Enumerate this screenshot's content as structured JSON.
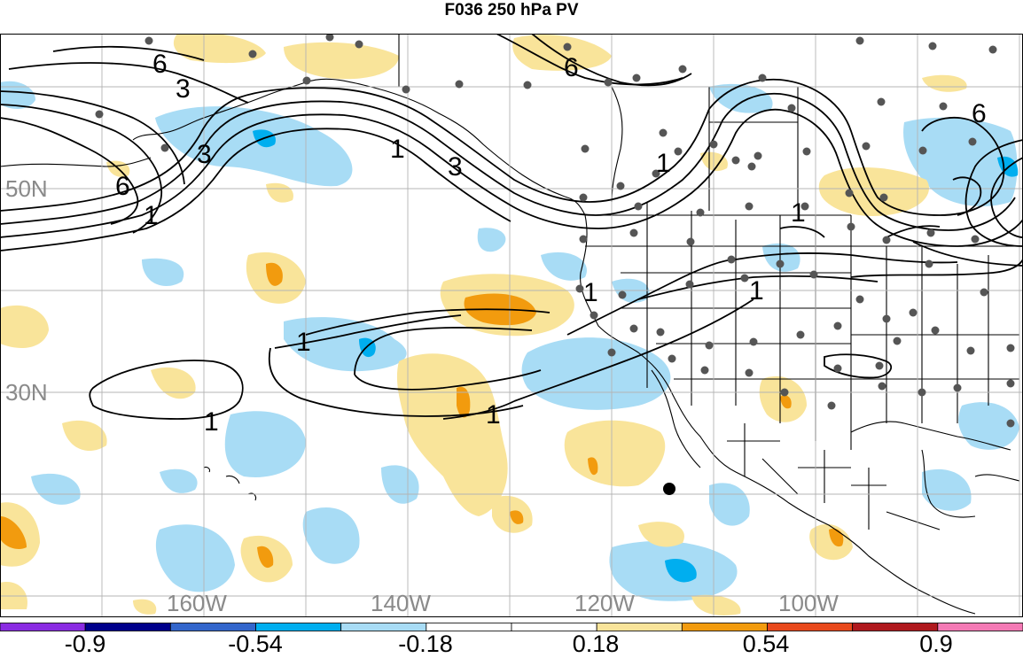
{
  "title": "F036 250 hPa PV",
  "map": {
    "latitude_labels": [
      "50N",
      "30N"
    ],
    "longitude_labels": [
      "160W",
      "140W",
      "120W",
      "100W"
    ],
    "contour_labels": [
      "6",
      "3",
      "1",
      "6",
      "3",
      "1",
      "1",
      "3",
      "6",
      "1",
      "1",
      "6",
      "1",
      "1",
      "1",
      "1"
    ],
    "colors": {
      "land_outline": "#000000",
      "grid": "#b4b4b4",
      "contour": "#000000",
      "station_dot": "#555555"
    }
  },
  "colorbar": {
    "tick_labels": [
      "-0.9",
      "-0.54",
      "-0.18",
      "0.18",
      "0.54",
      "0.9"
    ],
    "bins": [
      {
        "color": "#8a2be2"
      },
      {
        "color": "#00008b"
      },
      {
        "color": "#3366cc"
      },
      {
        "color": "#00aeef"
      },
      {
        "color": "#a8dcf5"
      },
      {
        "color": "#ffffff"
      },
      {
        "color": "#ffffff"
      },
      {
        "color": "#f9e49a"
      },
      {
        "color": "#f29b0e"
      },
      {
        "color": "#e8491c"
      },
      {
        "color": "#b0191e"
      },
      {
        "color": "#f47ab5"
      }
    ]
  }
}
